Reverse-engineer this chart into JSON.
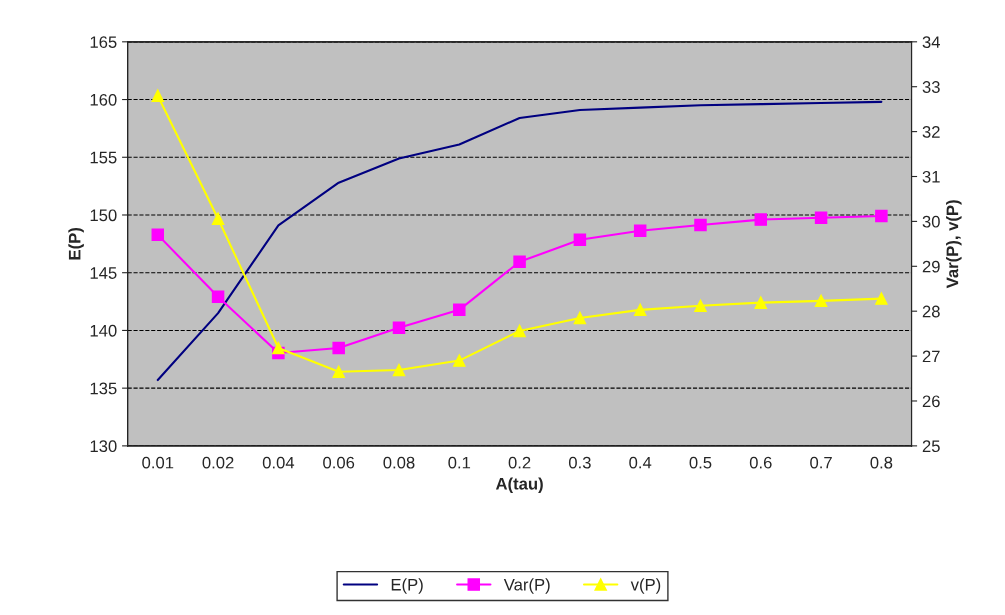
{
  "chart_data": {
    "type": "line",
    "xlabel": "A(tau)",
    "ylabel": "E(P)",
    "y2label": "Var(P), v(P)",
    "categories": [
      "0.01",
      "0.02",
      "0.04",
      "0.06",
      "0.08",
      "0.1",
      "0.2",
      "0.3",
      "0.4",
      "0.5",
      "0.6",
      "0.7",
      "0.8"
    ],
    "series": [
      {
        "name": "E(P)",
        "color": "#000080",
        "marker": "none",
        "values": [
          135.7,
          141.5,
          149.1,
          152.8,
          154.9,
          156.1,
          158.4,
          159.1,
          159.3,
          159.5,
          159.6,
          159.7,
          159.8
        ]
      },
      {
        "name": "Var(P)",
        "color": "#ff00ff",
        "marker": "square",
        "axis": "y2",
        "values": [
          29.7,
          28.32,
          27.07,
          27.18,
          27.63,
          28.03,
          29.1,
          29.59,
          29.79,
          29.92,
          30.04,
          30.08,
          30.12
        ]
      },
      {
        "name": "v(P)",
        "color": "#ffff00",
        "marker": "triangle",
        "axis": "y2",
        "values": [
          32.8,
          30.06,
          27.18,
          26.65,
          26.69,
          26.9,
          27.56,
          27.85,
          28.03,
          28.12,
          28.19,
          28.23,
          28.28
        ]
      }
    ],
    "ylim": [
      130,
      165
    ],
    "yticks": [
      130,
      135,
      140,
      145,
      150,
      155,
      160,
      165
    ],
    "y2lim": [
      25,
      34
    ],
    "y2ticks": [
      25,
      26,
      27,
      28,
      29,
      30,
      31,
      32,
      33,
      34
    ],
    "grid": "y",
    "legend": "bottom"
  }
}
